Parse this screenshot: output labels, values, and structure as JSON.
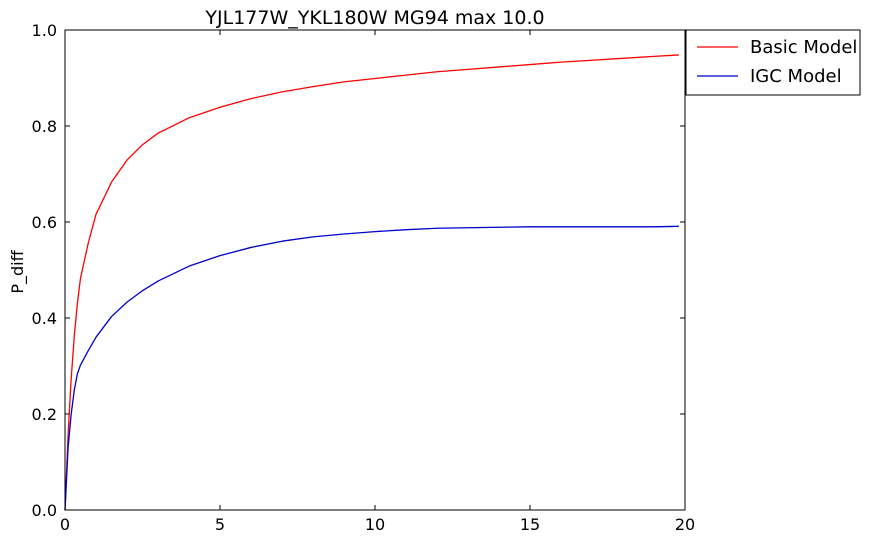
{
  "chart_data": {
    "type": "line",
    "title": "YJL177W_YKL180W MG94 max 10.0",
    "xlabel": "",
    "ylabel": "P_diff",
    "xlim": [
      0,
      20
    ],
    "ylim": [
      0,
      1.0
    ],
    "x_ticks": [
      "0",
      "5",
      "10",
      "15",
      "20"
    ],
    "y_ticks": [
      "0.0",
      "0.2",
      "0.4",
      "0.6",
      "0.8",
      "1.0"
    ],
    "grid": false,
    "legend_position": "outside-top-right",
    "x": [
      0,
      0.1,
      0.2,
      0.3,
      0.4,
      0.5,
      0.75,
      1,
      1.5,
      2,
      2.5,
      3,
      4,
      5,
      6,
      7,
      8,
      9,
      10,
      11,
      12,
      13,
      14,
      15,
      16,
      17,
      18,
      19,
      19.8
    ],
    "series": [
      {
        "name": "Basic Model",
        "color": "#ff0000",
        "values": [
          0.0,
          0.157,
          0.274,
          0.363,
          0.431,
          0.483,
          0.556,
          0.616,
          0.683,
          0.729,
          0.761,
          0.785,
          0.817,
          0.839,
          0.857,
          0.871,
          0.882,
          0.892,
          0.899,
          0.906,
          0.913,
          0.918,
          0.923,
          0.928,
          0.933,
          0.937,
          0.941,
          0.945,
          0.948
        ]
      },
      {
        "name": "IGC Model",
        "color": "#0000cc",
        "values": [
          0.0,
          0.13,
          0.2,
          0.25,
          0.284,
          0.302,
          0.332,
          0.36,
          0.403,
          0.433,
          0.457,
          0.477,
          0.508,
          0.53,
          0.547,
          0.56,
          0.569,
          0.575,
          0.58,
          0.584,
          0.587,
          0.588,
          0.589,
          0.59,
          0.59,
          0.59,
          0.59,
          0.59,
          0.591
        ]
      }
    ]
  }
}
